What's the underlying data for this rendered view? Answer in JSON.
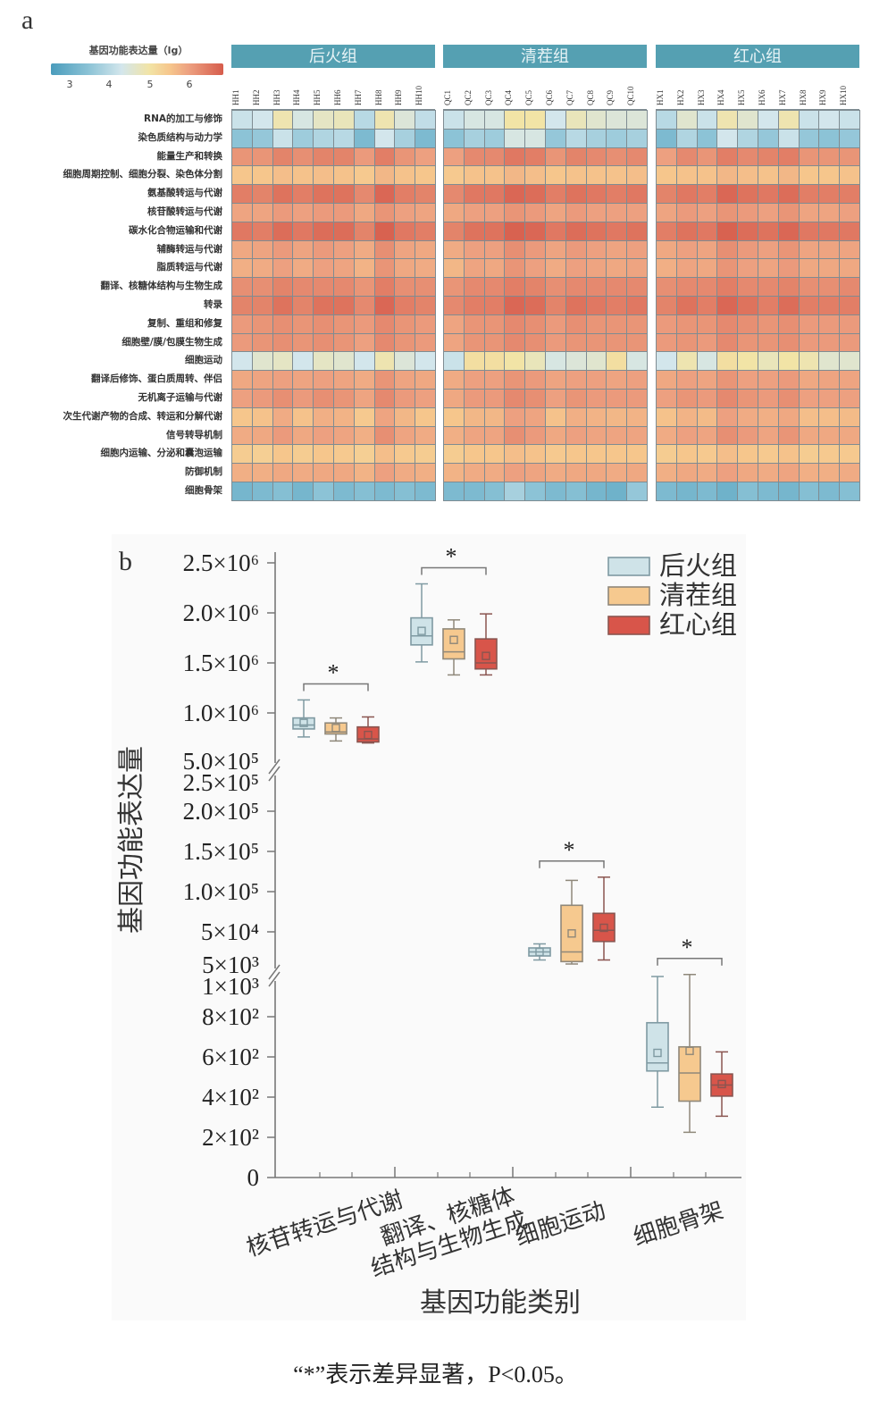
{
  "panel_a": {
    "panel_label": "a",
    "legend": {
      "title": "基因功能表达量（lg）",
      "ticks": [
        "3",
        "4",
        "5",
        "6"
      ]
    },
    "groups": [
      "后火组",
      "清茬组",
      "红心组"
    ]
  },
  "panel_b": {
    "panel_label": "b"
  },
  "footnote": "“*”表示差异显著，P<0.05。",
  "chart_data": [
    {
      "type": "heatmap",
      "title": "基因功能表达量（lg）",
      "color_range": [
        2.5,
        6.8
      ],
      "color_ticks": [
        3,
        4,
        5,
        6
      ],
      "groups": [
        {
          "name": "后火组",
          "columns": [
            "HH1",
            "HH2",
            "HH3",
            "HH4",
            "HH5",
            "HH6",
            "HH7",
            "HH8",
            "HH9",
            "HH10"
          ]
        },
        {
          "name": "清茬组",
          "columns": [
            "QC1",
            "QC2",
            "QC3",
            "QC4",
            "QC5",
            "QC6",
            "QC7",
            "QC8",
            "QC9",
            "QC10"
          ]
        },
        {
          "name": "红心组",
          "columns": [
            "HX1",
            "HX2",
            "HX3",
            "HX4",
            "HX5",
            "HX6",
            "HX7",
            "HX8",
            "HX9",
            "HX10"
          ]
        }
      ],
      "rows": [
        "RNA的加工与修饰",
        "染色质结构与动力学",
        "能量生产和转换",
        "细胞周期控制、细胞分裂、染色体分割",
        "氨基酸转运与代谢",
        "核苷酸转运与代谢",
        "碳水化合物运输和代谢",
        "辅酶转运与代谢",
        "脂质转运与代谢",
        "翻译、核糖体结构与生物生成",
        "转录",
        "复制、重组和修复",
        "细胞壁/膜/包膜生物生成",
        "细胞运动",
        "翻译后修饰、蛋白质周转、伴侣",
        "无机离子运输与代谢",
        "次生代谢产物的合成、转运和分解代谢",
        "信号转导机制",
        "细胞内运输、分泌和囊泡运输",
        "防御机制",
        "细胞骨架"
      ],
      "values": [
        [
          4.2,
          4.3,
          4.9,
          4.4,
          4.7,
          4.8,
          4.0,
          4.9,
          4.5,
          4.1,
          4.2,
          4.4,
          4.4,
          5.0,
          5.0,
          4.3,
          4.8,
          4.6,
          4.5,
          4.5,
          4.0,
          4.6,
          4.2,
          4.9,
          4.6,
          4.3,
          4.9,
          4.2,
          4.3,
          4.2
        ],
        [
          3.5,
          3.6,
          4.2,
          3.7,
          3.9,
          4.0,
          3.3,
          4.3,
          3.8,
          3.3,
          3.5,
          3.8,
          3.7,
          4.4,
          4.4,
          3.6,
          4.0,
          3.8,
          3.7,
          3.8,
          3.3,
          3.9,
          3.5,
          4.3,
          3.9,
          3.6,
          4.2,
          3.6,
          3.5,
          3.6
        ],
        [
          6.1,
          6.1,
          6.25,
          6.15,
          6.25,
          6.25,
          6.05,
          6.3,
          6.1,
          6.0,
          6.0,
          6.2,
          6.2,
          6.35,
          6.3,
          6.1,
          6.25,
          6.2,
          6.15,
          6.2,
          6.0,
          6.2,
          6.1,
          6.3,
          6.2,
          6.25,
          6.3,
          6.1,
          6.1,
          6.1
        ],
        [
          5.5,
          5.5,
          5.6,
          5.55,
          5.6,
          5.55,
          5.45,
          5.7,
          5.55,
          5.5,
          5.45,
          5.55,
          5.55,
          5.7,
          5.6,
          5.5,
          5.55,
          5.55,
          5.55,
          5.6,
          5.5,
          5.55,
          5.55,
          5.7,
          5.6,
          5.55,
          5.7,
          5.5,
          5.5,
          5.55
        ],
        [
          6.3,
          6.25,
          6.4,
          6.3,
          6.4,
          6.4,
          6.2,
          6.5,
          6.3,
          6.25,
          6.2,
          6.35,
          6.35,
          6.5,
          6.45,
          6.3,
          6.4,
          6.35,
          6.3,
          6.35,
          6.25,
          6.35,
          6.3,
          6.5,
          6.4,
          6.35,
          6.45,
          6.3,
          6.3,
          6.3
        ],
        [
          5.95,
          5.95,
          6.05,
          6.0,
          6.05,
          6.05,
          5.9,
          6.1,
          6.0,
          5.95,
          5.9,
          6.0,
          6.0,
          6.1,
          6.05,
          5.95,
          6.05,
          6.0,
          6.0,
          6.0,
          5.95,
          6.05,
          6.0,
          6.1,
          6.05,
          6.0,
          6.1,
          5.95,
          5.95,
          6.0
        ],
        [
          6.35,
          6.3,
          6.45,
          6.35,
          6.45,
          6.45,
          6.25,
          6.55,
          6.35,
          6.3,
          6.25,
          6.4,
          6.4,
          6.55,
          6.5,
          6.35,
          6.45,
          6.4,
          6.35,
          6.4,
          6.3,
          6.4,
          6.35,
          6.55,
          6.45,
          6.4,
          6.5,
          6.35,
          6.35,
          6.35
        ],
        [
          5.9,
          5.95,
          6.05,
          5.95,
          6.05,
          6.0,
          5.85,
          6.15,
          5.95,
          5.9,
          5.85,
          6.0,
          6.0,
          6.15,
          6.05,
          5.95,
          6.05,
          6.0,
          5.95,
          6.0,
          5.9,
          6.0,
          5.95,
          6.15,
          6.05,
          6.0,
          6.1,
          5.95,
          5.95,
          5.95
        ],
        [
          5.8,
          5.85,
          6.0,
          5.85,
          6.0,
          5.95,
          5.75,
          6.1,
          5.9,
          5.85,
          5.7,
          5.95,
          5.9,
          6.1,
          6.0,
          5.85,
          6.0,
          5.95,
          5.9,
          5.95,
          5.8,
          5.95,
          5.9,
          6.1,
          6.0,
          5.95,
          6.05,
          5.9,
          5.9,
          5.9
        ],
        [
          6.15,
          6.15,
          6.25,
          6.2,
          6.2,
          6.2,
          6.1,
          6.3,
          6.15,
          6.15,
          6.1,
          6.2,
          6.2,
          6.3,
          6.25,
          6.15,
          6.2,
          6.2,
          6.2,
          6.2,
          6.15,
          6.2,
          6.2,
          6.3,
          6.2,
          6.2,
          6.25,
          6.15,
          6.15,
          6.2
        ],
        [
          6.25,
          6.25,
          6.4,
          6.25,
          6.4,
          6.4,
          6.2,
          6.5,
          6.3,
          6.25,
          6.2,
          6.3,
          6.3,
          6.5,
          6.45,
          6.25,
          6.4,
          6.35,
          6.3,
          6.35,
          6.25,
          6.4,
          6.3,
          6.5,
          6.4,
          6.3,
          6.45,
          6.3,
          6.3,
          6.3
        ],
        [
          6.05,
          6.1,
          6.15,
          6.1,
          6.15,
          6.1,
          6.05,
          6.2,
          6.1,
          6.05,
          5.95,
          6.1,
          6.1,
          6.2,
          6.15,
          6.05,
          6.15,
          6.1,
          6.1,
          6.1,
          6.05,
          6.1,
          6.1,
          6.2,
          6.15,
          6.1,
          6.15,
          6.05,
          6.05,
          6.05
        ],
        [
          6.05,
          6.1,
          6.15,
          6.1,
          6.15,
          6.1,
          6.0,
          6.2,
          6.1,
          6.05,
          5.95,
          6.1,
          6.1,
          6.2,
          6.15,
          6.05,
          6.1,
          6.1,
          6.1,
          6.1,
          6.05,
          6.1,
          6.05,
          6.2,
          6.1,
          6.1,
          6.15,
          6.05,
          6.05,
          6.05
        ],
        [
          4.3,
          4.6,
          4.7,
          4.3,
          4.7,
          4.6,
          4.3,
          4.9,
          4.5,
          4.3,
          4.2,
          5.1,
          5.1,
          5.0,
          4.8,
          4.4,
          4.5,
          4.6,
          5.1,
          4.4,
          4.3,
          4.9,
          4.4,
          5.1,
          5.0,
          4.8,
          5.0,
          4.9,
          4.6,
          4.6
        ],
        [
          5.9,
          5.95,
          6.0,
          5.95,
          6.0,
          5.95,
          5.85,
          6.1,
          5.95,
          5.9,
          5.85,
          6.0,
          6.0,
          6.1,
          6.05,
          5.95,
          6.0,
          6.0,
          5.95,
          6.0,
          5.9,
          6.0,
          5.95,
          6.1,
          6.0,
          6.0,
          6.05,
          5.9,
          5.95,
          5.95
        ],
        [
          6.0,
          6.05,
          6.15,
          6.05,
          6.15,
          6.1,
          5.95,
          6.2,
          6.05,
          6.0,
          5.9,
          6.05,
          6.05,
          6.2,
          6.15,
          6.0,
          6.1,
          6.05,
          6.05,
          6.05,
          6.0,
          6.1,
          6.05,
          6.2,
          6.1,
          6.05,
          6.15,
          6.0,
          6.0,
          6.0
        ],
        [
          5.5,
          5.55,
          5.85,
          5.55,
          5.8,
          5.75,
          5.45,
          5.95,
          5.7,
          5.5,
          5.5,
          5.7,
          5.7,
          6.0,
          5.95,
          5.55,
          5.8,
          5.75,
          5.7,
          5.75,
          5.55,
          5.75,
          5.65,
          6.0,
          5.85,
          5.8,
          5.9,
          5.6,
          5.6,
          5.65
        ],
        [
          5.85,
          5.9,
          6.05,
          5.9,
          6.0,
          5.95,
          5.8,
          6.15,
          5.95,
          5.85,
          5.8,
          5.95,
          5.95,
          6.15,
          6.05,
          5.9,
          6.0,
          5.95,
          5.95,
          5.95,
          5.85,
          6.0,
          5.95,
          6.15,
          6.05,
          5.95,
          6.1,
          5.9,
          5.9,
          5.9
        ],
        [
          5.4,
          5.35,
          5.5,
          5.4,
          5.5,
          5.45,
          5.35,
          5.6,
          5.45,
          5.4,
          5.4,
          5.5,
          5.5,
          5.6,
          5.55,
          5.45,
          5.5,
          5.5,
          5.5,
          5.5,
          5.4,
          5.5,
          5.45,
          5.6,
          5.5,
          5.45,
          5.55,
          5.4,
          5.45,
          5.45
        ],
        [
          5.8,
          5.8,
          5.9,
          5.85,
          5.9,
          5.9,
          5.75,
          6.0,
          5.85,
          5.8,
          5.75,
          5.85,
          5.85,
          6.0,
          5.95,
          5.85,
          5.9,
          5.9,
          5.85,
          5.9,
          5.8,
          5.9,
          5.85,
          6.0,
          5.9,
          5.85,
          5.95,
          5.8,
          5.8,
          5.85
        ],
        [
          3.2,
          3.3,
          3.4,
          3.2,
          3.5,
          3.3,
          3.4,
          3.3,
          3.4,
          3.3,
          3.3,
          3.3,
          3.4,
          3.8,
          3.5,
          3.3,
          3.4,
          3.2,
          3.1,
          3.6,
          3.3,
          3.2,
          3.3,
          3.1,
          3.4,
          3.3,
          3.2,
          3.4,
          3.3,
          3.4
        ]
      ]
    },
    {
      "type": "box",
      "xlabel": "基因功能类别",
      "ylabel": "基因功能表达量",
      "y_axis": "broken",
      "y_ticks": [
        {
          "value": 2500000,
          "label": "2.5×10⁶"
        },
        {
          "value": 2000000,
          "label": "2.0×10⁶"
        },
        {
          "value": 1500000,
          "label": "1.5×10⁶"
        },
        {
          "value": 1000000,
          "label": "1.0×10⁶"
        },
        {
          "value": 500000,
          "label": "5.0×10⁵",
          "break": true
        },
        {
          "value": 250000,
          "label": "2.5×10⁵",
          "break": true
        },
        {
          "value": 200000,
          "label": "2.0×10⁵"
        },
        {
          "value": 150000,
          "label": "1.5×10⁵"
        },
        {
          "value": 100000,
          "label": "1.0×10⁵"
        },
        {
          "value": 50000,
          "label": "5×10⁴"
        },
        {
          "value": 5000,
          "label": "5×10³",
          "break": true
        },
        {
          "value": 1000,
          "label": "1×10³",
          "break": true
        },
        {
          "value": 800,
          "label": "8×10²"
        },
        {
          "value": 600,
          "label": "6×10²"
        },
        {
          "value": 400,
          "label": "4×10²"
        },
        {
          "value": 200,
          "label": "2×10²"
        },
        {
          "value": 0,
          "label": "0"
        }
      ],
      "series": [
        {
          "name": "后火组",
          "color": "#cfe3e8"
        },
        {
          "name": "清茬组",
          "color": "#f6c98f"
        },
        {
          "name": "红心组",
          "color": "#d8554a"
        }
      ],
      "categories": [
        {
          "name": "核苷转运与代谢",
          "lines": [
            "核苷转运与代谢"
          ],
          "significance": "*",
          "boxes": [
            {
              "min": 760000,
              "q1": 840000,
              "median": 880000,
              "q3": 950000,
              "max": 1130000,
              "mean": 900000
            },
            {
              "min": 720000,
              "q1": 790000,
              "median": 810000,
              "q3": 900000,
              "max": 950000,
              "mean": 850000
            },
            {
              "min": 700000,
              "q1": 710000,
              "median": 740000,
              "q3": 860000,
              "max": 960000,
              "mean": 780000
            }
          ]
        },
        {
          "name": "翻译、核糖体结构与生物生成",
          "lines": [
            "翻译、核糖体",
            "结构与生物生成"
          ],
          "significance": "*",
          "boxes": [
            {
              "min": 1510000,
              "q1": 1680000,
              "median": 1770000,
              "q3": 1950000,
              "max": 2290000,
              "mean": 1820000
            },
            {
              "min": 1380000,
              "q1": 1540000,
              "median": 1610000,
              "q3": 1840000,
              "max": 1930000,
              "mean": 1730000
            },
            {
              "min": 1380000,
              "q1": 1440000,
              "median": 1500000,
              "q3": 1740000,
              "max": 1990000,
              "mean": 1570000
            }
          ]
        },
        {
          "name": "细胞运动",
          "lines": [
            "细胞运动"
          ],
          "significance": "*",
          "boxes": [
            {
              "min": 15000,
              "q1": 20000,
              "median": 25000,
              "q3": 30000,
              "max": 35000,
              "mean": 25000
            },
            {
              "min": 10000,
              "q1": 13000,
              "median": 25000,
              "q3": 83000,
              "max": 114000,
              "mean": 48000
            },
            {
              "min": 15000,
              "q1": 38000,
              "median": 52000,
              "q3": 73000,
              "max": 118000,
              "mean": 55000
            }
          ]
        },
        {
          "name": "细胞骨架",
          "lines": [
            "细胞骨架"
          ],
          "significance": "*",
          "boxes": [
            {
              "min": 350,
              "q1": 530,
              "median": 570,
              "q3": 770,
              "max": 1000,
              "mean": 620
            },
            {
              "min": 225,
              "q1": 380,
              "median": 520,
              "q3": 650,
              "max": 1010,
              "mean": 630
            },
            {
              "min": 305,
              "q1": 405,
              "median": 460,
              "q3": 515,
              "max": 625,
              "mean": 465
            }
          ]
        }
      ],
      "legend_position": "top-right"
    }
  ]
}
